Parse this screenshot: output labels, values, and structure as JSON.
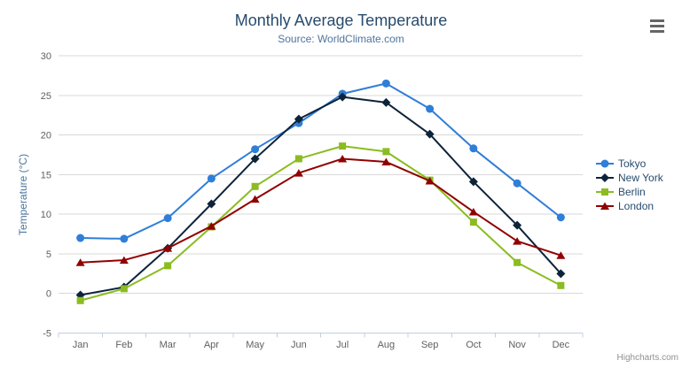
{
  "chart": {
    "title": "Monthly Average Temperature",
    "subtitle": "Source: WorldClimate.com",
    "credits": "Highcharts.com"
  },
  "chart_data": {
    "type": "line",
    "title": "Monthly Average Temperature",
    "subtitle": "Source: WorldClimate.com",
    "xlabel": "",
    "ylabel": "Temperature (°C)",
    "ylim": [
      -5,
      30
    ],
    "ytick_interval": 5,
    "grid": true,
    "legend_position": "right",
    "categories": [
      "Jan",
      "Feb",
      "Mar",
      "Apr",
      "May",
      "Jun",
      "Jul",
      "Aug",
      "Sep",
      "Oct",
      "Nov",
      "Dec"
    ],
    "series": [
      {
        "name": "Tokyo",
        "marker": "circle",
        "color": "#2f7ed8",
        "values": [
          7.0,
          6.9,
          9.5,
          14.5,
          18.2,
          21.5,
          25.2,
          26.5,
          23.3,
          18.3,
          13.9,
          9.6
        ]
      },
      {
        "name": "New York",
        "marker": "diamond",
        "color": "#0d233a",
        "values": [
          -0.2,
          0.8,
          5.7,
          11.3,
          17.0,
          22.0,
          24.8,
          24.1,
          20.1,
          14.1,
          8.6,
          2.5
        ]
      },
      {
        "name": "Berlin",
        "marker": "square",
        "color": "#8bbc21",
        "values": [
          -0.9,
          0.6,
          3.5,
          8.4,
          13.5,
          17.0,
          18.6,
          17.9,
          14.3,
          9.0,
          3.9,
          1.0
        ]
      },
      {
        "name": "London",
        "marker": "triangle",
        "color": "#910000",
        "values": [
          3.9,
          4.2,
          5.7,
          8.5,
          11.9,
          15.2,
          17.0,
          16.6,
          14.2,
          10.3,
          6.6,
          4.8
        ]
      }
    ]
  },
  "colors": {
    "background": "#ffffff",
    "title": "#274b6d",
    "subtitle": "#4d759e",
    "axis_label": "#606060",
    "axis_line": "#c0d0e0",
    "gridline": "#d8d8d8",
    "legend_text": "#274b6d",
    "credits": "#909090",
    "menu_icon": "#666666"
  }
}
